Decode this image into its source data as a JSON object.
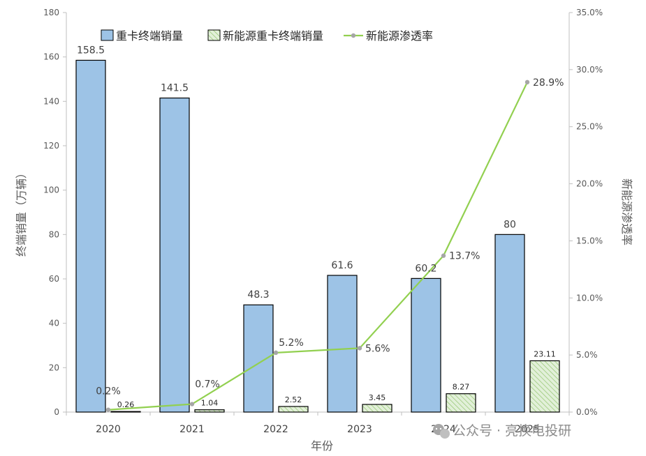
{
  "chart_data": {
    "type": "bar",
    "categories": [
      "2020",
      "2021",
      "2022",
      "2023",
      "2024",
      "2025"
    ],
    "series": [
      {
        "name": "重卡终端销量",
        "type": "bar",
        "axis": "left",
        "color": "#9dc3e6",
        "values": [
          158.5,
          141.5,
          48.3,
          61.6,
          60.2,
          80
        ],
        "labels": [
          "158.5",
          "141.5",
          "48.3",
          "61.6",
          "60.2",
          "80"
        ]
      },
      {
        "name": "新能源重卡终端销量",
        "type": "bar",
        "axis": "left",
        "color": "#e2f0d9",
        "pattern": "diagonal-hatch",
        "values": [
          0.26,
          1.04,
          2.52,
          3.45,
          8.27,
          23.11
        ],
        "labels": [
          "0.26",
          "1.04",
          "2.52",
          "3.45",
          "8.27",
          "23.11"
        ]
      },
      {
        "name": "新能源渗透率",
        "type": "line",
        "axis": "right",
        "color": "#92d050",
        "values": [
          0.2,
          0.7,
          5.2,
          5.6,
          13.7,
          28.9
        ],
        "labels": [
          "0.2%",
          "0.7%",
          "5.2%",
          "5.6%",
          "13.7%",
          "28.9%"
        ]
      }
    ],
    "xlabel": "年份",
    "ylabel": "终端销量（万辆）",
    "y2label": "新能源渗透率",
    "ylim": [
      0,
      180
    ],
    "yticks": [
      "0",
      "20",
      "40",
      "60",
      "80",
      "100",
      "120",
      "140",
      "160",
      "180"
    ],
    "y2lim": [
      0,
      35
    ],
    "y2ticks": [
      "0.0%",
      "5.0%",
      "10.0%",
      "15.0%",
      "20.0%",
      "25.0%",
      "30.0%",
      "35.0%"
    ],
    "legend_position": "top-left",
    "grid": false
  },
  "watermark": {
    "text": "公众号 · 亮换电投研",
    "icon": "wechat-icon"
  }
}
